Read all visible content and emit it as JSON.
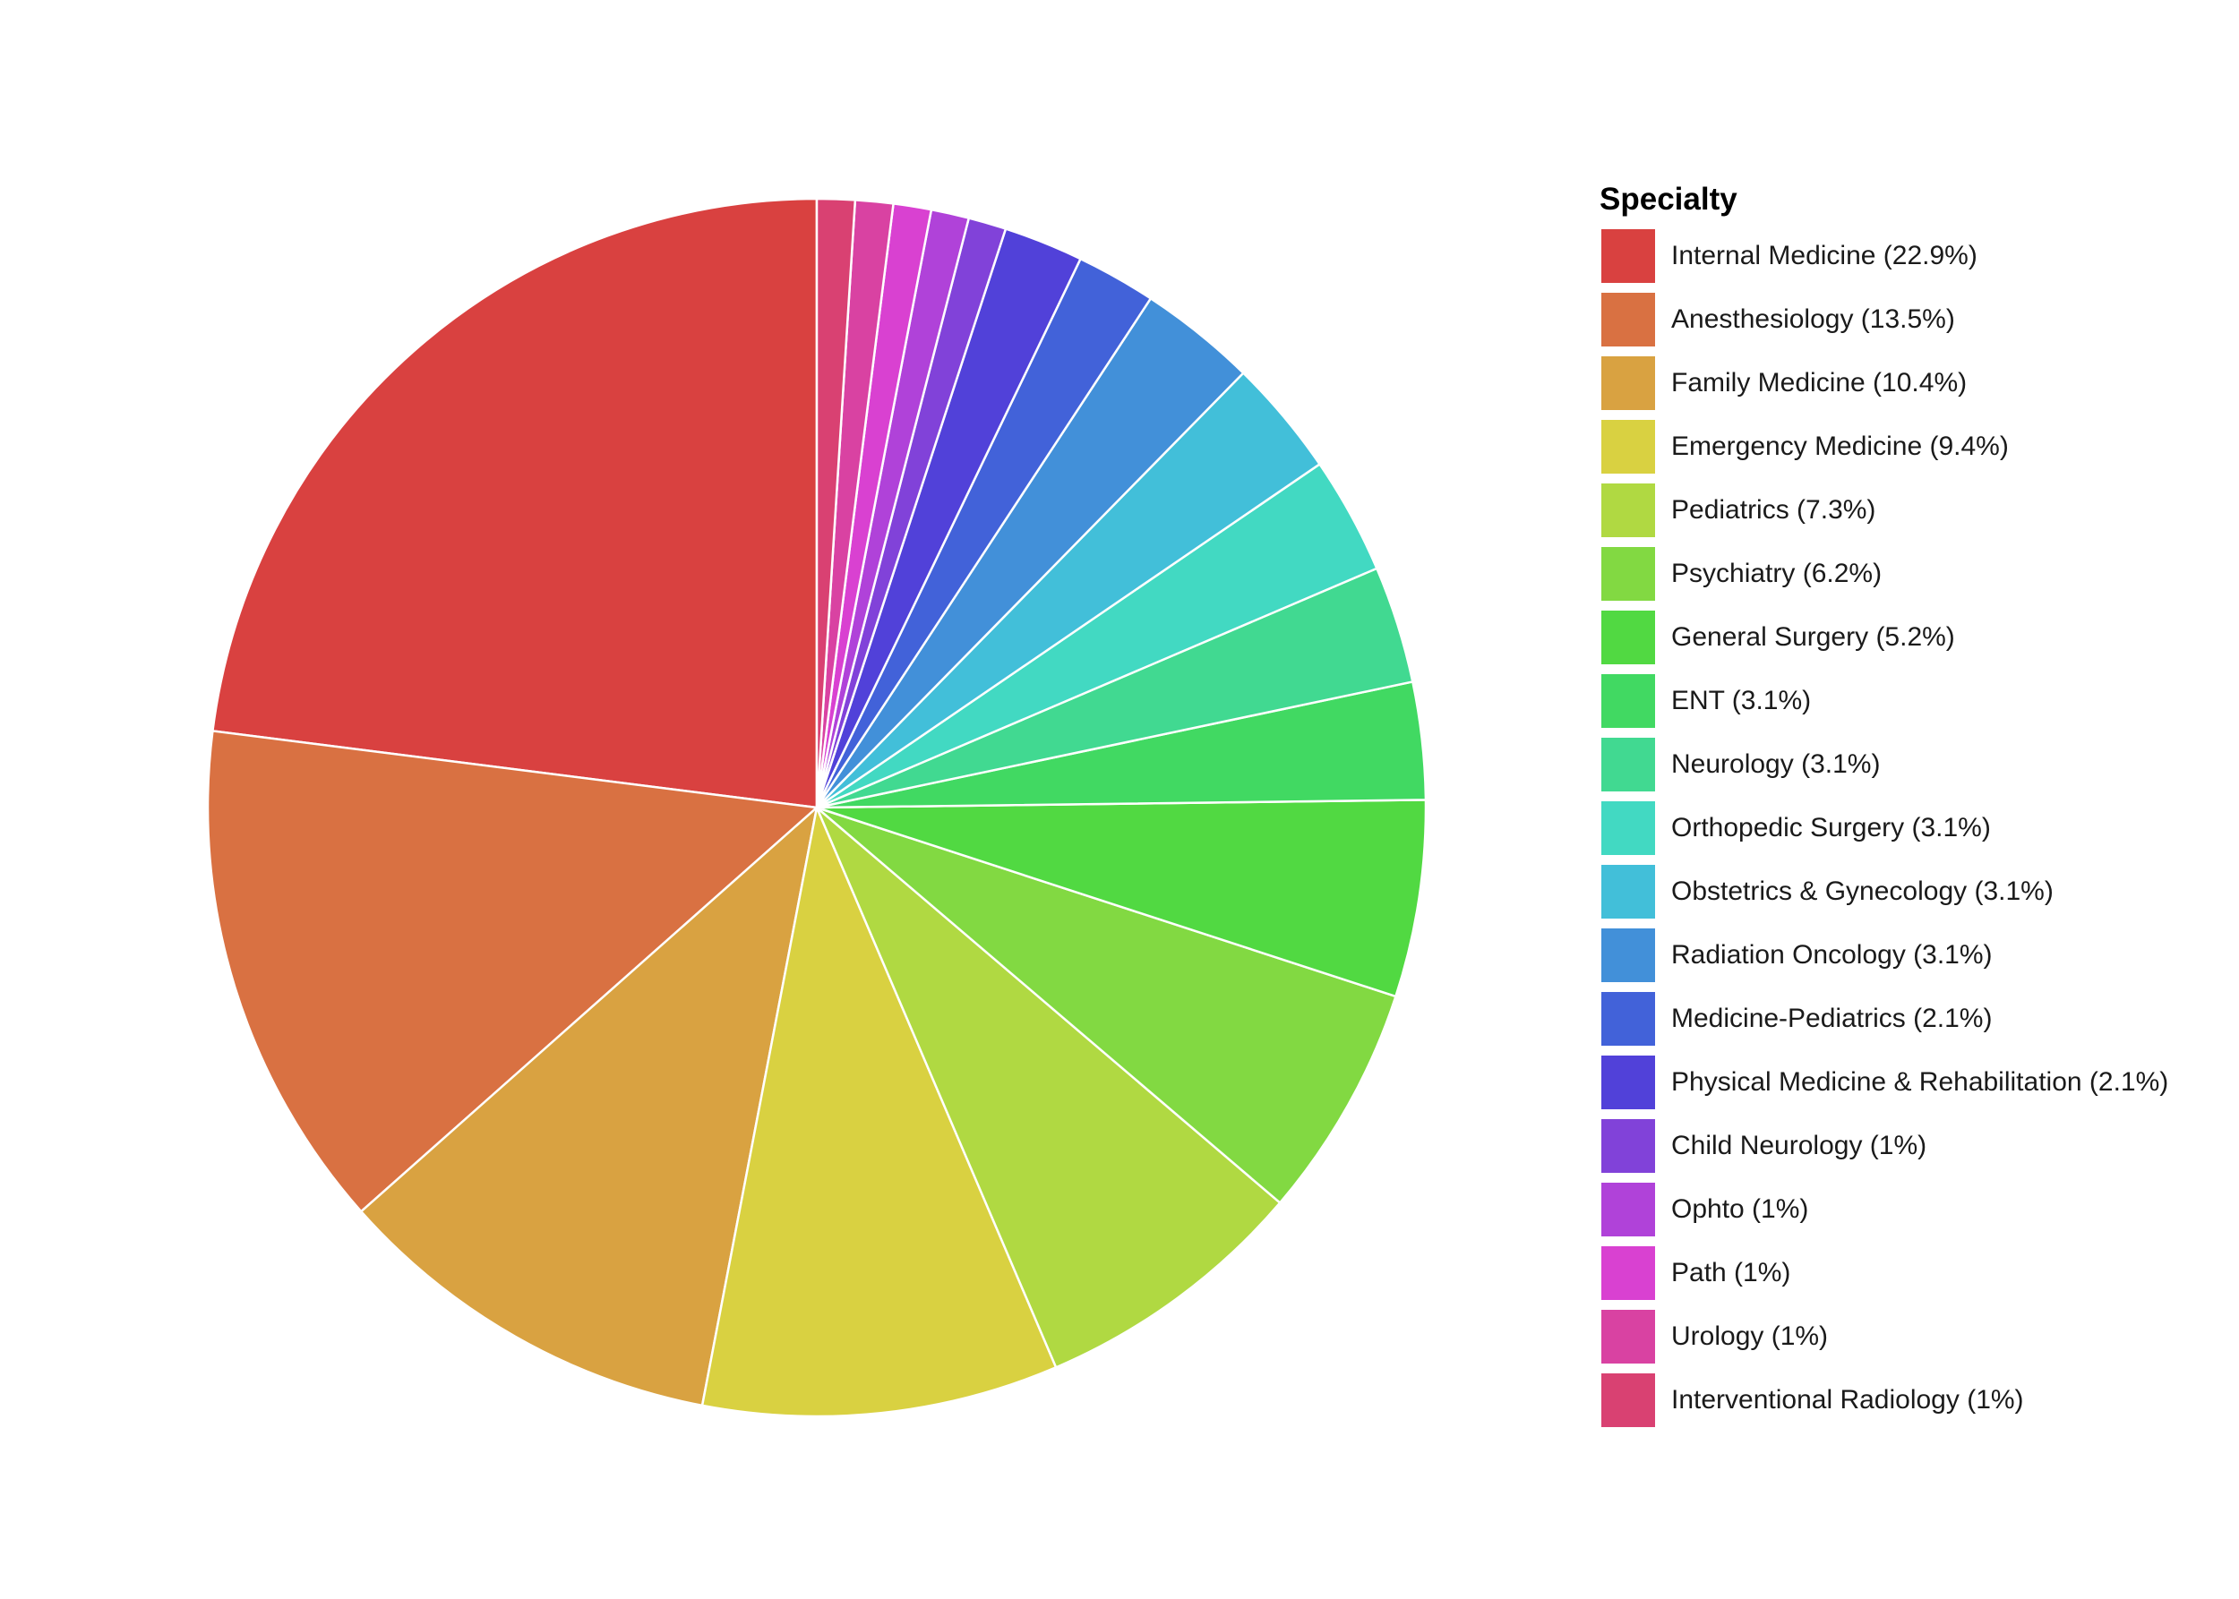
{
  "chart_data": {
    "type": "pie",
    "legend_title": "Specialty",
    "legend_position": "right",
    "start": "top",
    "direction": "clockwise-from-last",
    "slices": [
      {
        "label": "Internal Medicine (22.9%)",
        "name": "Internal Medicine",
        "value": 22.9,
        "color": "#d94140"
      },
      {
        "label": "Anesthesiology (13.5%)",
        "name": "Anesthesiology",
        "value": 13.5,
        "color": "#d97142"
      },
      {
        "label": "Family Medicine (10.4%)",
        "name": "Family Medicine",
        "value": 10.4,
        "color": "#d9a241"
      },
      {
        "label": "Emergency Medicine (9.4%)",
        "name": "Emergency Medicine",
        "value": 9.4,
        "color": "#d9d141"
      },
      {
        "label": "Pediatrics (7.3%)",
        "name": "Pediatrics",
        "value": 7.3,
        "color": "#b0d942"
      },
      {
        "label": "Psychiatry (6.2%)",
        "name": "Psychiatry",
        "value": 6.2,
        "color": "#82d942"
      },
      {
        "label": "General Surgery (5.2%)",
        "name": "General Surgery",
        "value": 5.2,
        "color": "#51d942"
      },
      {
        "label": "ENT (3.1%)",
        "name": "ENT",
        "value": 3.1,
        "color": "#41d962"
      },
      {
        "label": "Neurology (3.1%)",
        "name": "Neurology",
        "value": 3.1,
        "color": "#41d991"
      },
      {
        "label": "Orthopedic Surgery (3.1%)",
        "name": "Orthopedic Surgery",
        "value": 3.1,
        "color": "#42d9c2"
      },
      {
        "label": "Obstetrics & Gynecology (3.1%)",
        "name": "Obstetrics & Gynecology",
        "value": 3.1,
        "color": "#42bfd9"
      },
      {
        "label": "Radiation Oncology (3.1%)",
        "name": "Radiation Oncology",
        "value": 3.1,
        "color": "#4290d9"
      },
      {
        "label": "Medicine-Pediatrics (2.1%)",
        "name": "Medicine-Pediatrics",
        "value": 2.1,
        "color": "#4262d9"
      },
      {
        "label": "Physical Medicine & Rehabilitation (2.1%)",
        "name": "Physical Medicine & Rehabilitation",
        "value": 2.1,
        "color": "#5141d9"
      },
      {
        "label": "Child Neurology (1%)",
        "name": "Child Neurology",
        "value": 1,
        "color": "#8142d9"
      },
      {
        "label": "Ophto (1%)",
        "name": "Ophto",
        "value": 1,
        "color": "#b042d9"
      },
      {
        "label": "Path (1%)",
        "name": "Path",
        "value": 1,
        "color": "#d941d1"
      },
      {
        "label": "Urology (1%)",
        "name": "Urology",
        "value": 1,
        "color": "#d942a2"
      },
      {
        "label": "Interventional Radiology (1%)",
        "name": "Interventional Radiology",
        "value": 1,
        "color": "#d94172"
      }
    ]
  }
}
